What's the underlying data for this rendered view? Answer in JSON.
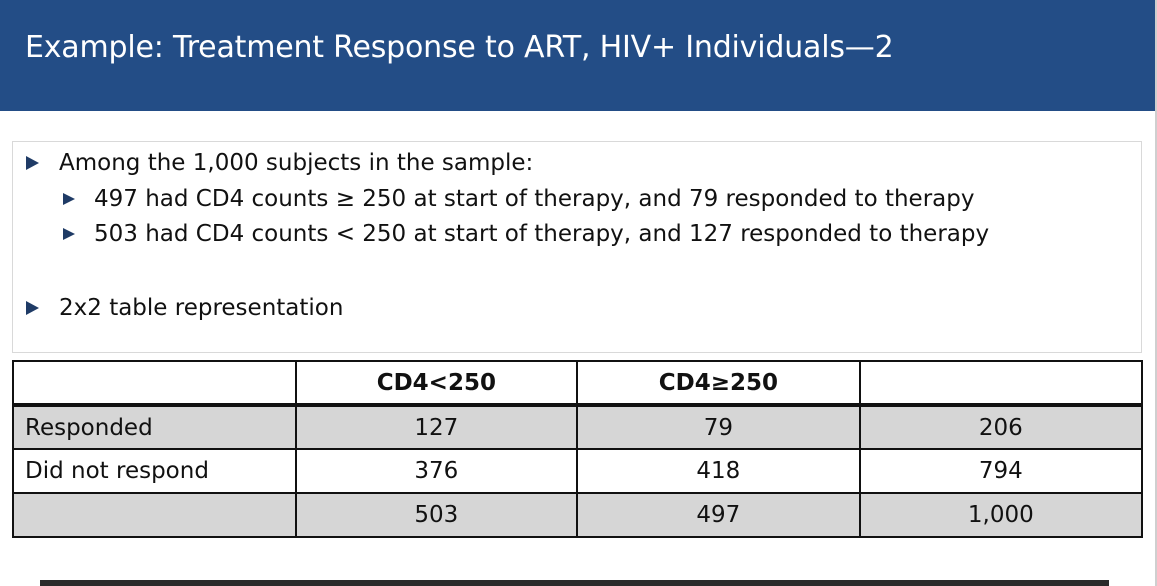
{
  "slide": {
    "title": "Example: Treatment Response to ART, HIV+ Individuals—2",
    "bullets": [
      {
        "text": "Among  the 1,000 subjects in the sample:",
        "level": 1
      },
      {
        "text": "497 had CD4 counts ≥ 250 at start of therapy, and 79 responded to therapy",
        "level": 2
      },
      {
        "text": "503 had CD4 counts < 250 at start of therapy, and 127 responded to therapy",
        "level": 2
      },
      {
        "text": "2x2 table representation",
        "level": 1
      }
    ],
    "colors": {
      "title_bar": "#234d86",
      "bullet_arrow": "#1f3b66",
      "shaded_row": "#d6d6d6"
    }
  },
  "table": {
    "headers": [
      "",
      "CD4<250",
      "CD4≥250",
      ""
    ],
    "rows": [
      {
        "label": "Responded",
        "values": [
          "127",
          "79",
          "206"
        ],
        "shaded": true
      },
      {
        "label": "Did not respond",
        "values": [
          "376",
          "418",
          "794"
        ],
        "shaded": false
      },
      {
        "label": "",
        "values": [
          "503",
          "497",
          "1,000"
        ],
        "shaded": true
      }
    ]
  }
}
